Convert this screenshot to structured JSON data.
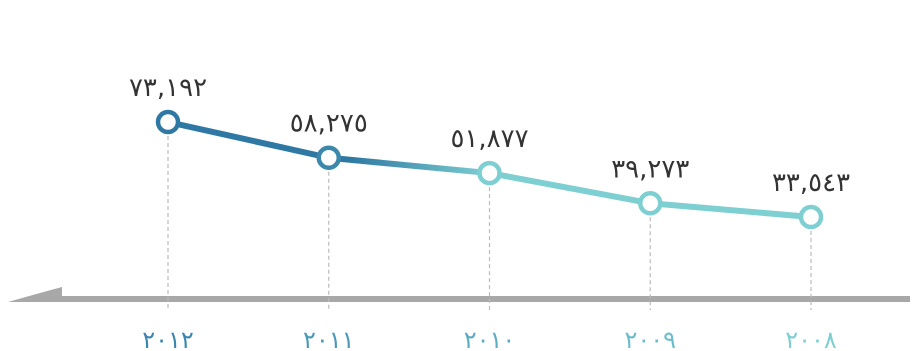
{
  "chart_data": {
    "type": "line",
    "title": "",
    "xlabel": "",
    "ylabel": "",
    "categories": [
      "٢٠١٢",
      "٢٠١١",
      "٢٠١٠",
      "٢٠٠٩",
      "٢٠٠٨"
    ],
    "values": [
      73192,
      58275,
      51877,
      39273,
      33543
    ],
    "value_labels": [
      "٧٣,١٩٢",
      "٥٨,٢٧٥",
      "٥١,٨٧٧",
      "٣٩,٢٧٣",
      "٣٣,٥٤٣"
    ],
    "x_order": "right-to-left",
    "ylim": [
      0,
      100000
    ],
    "grid": false,
    "legend": "none",
    "colors": {
      "line_start": "#2e78a3",
      "line_end": "#7dcfd2",
      "tick_start": "#3a86b0",
      "tick_end": "#7dcfd2",
      "axis": "#a8a8a8",
      "drop_line": "#bbbbbb",
      "label": "#333333"
    }
  }
}
